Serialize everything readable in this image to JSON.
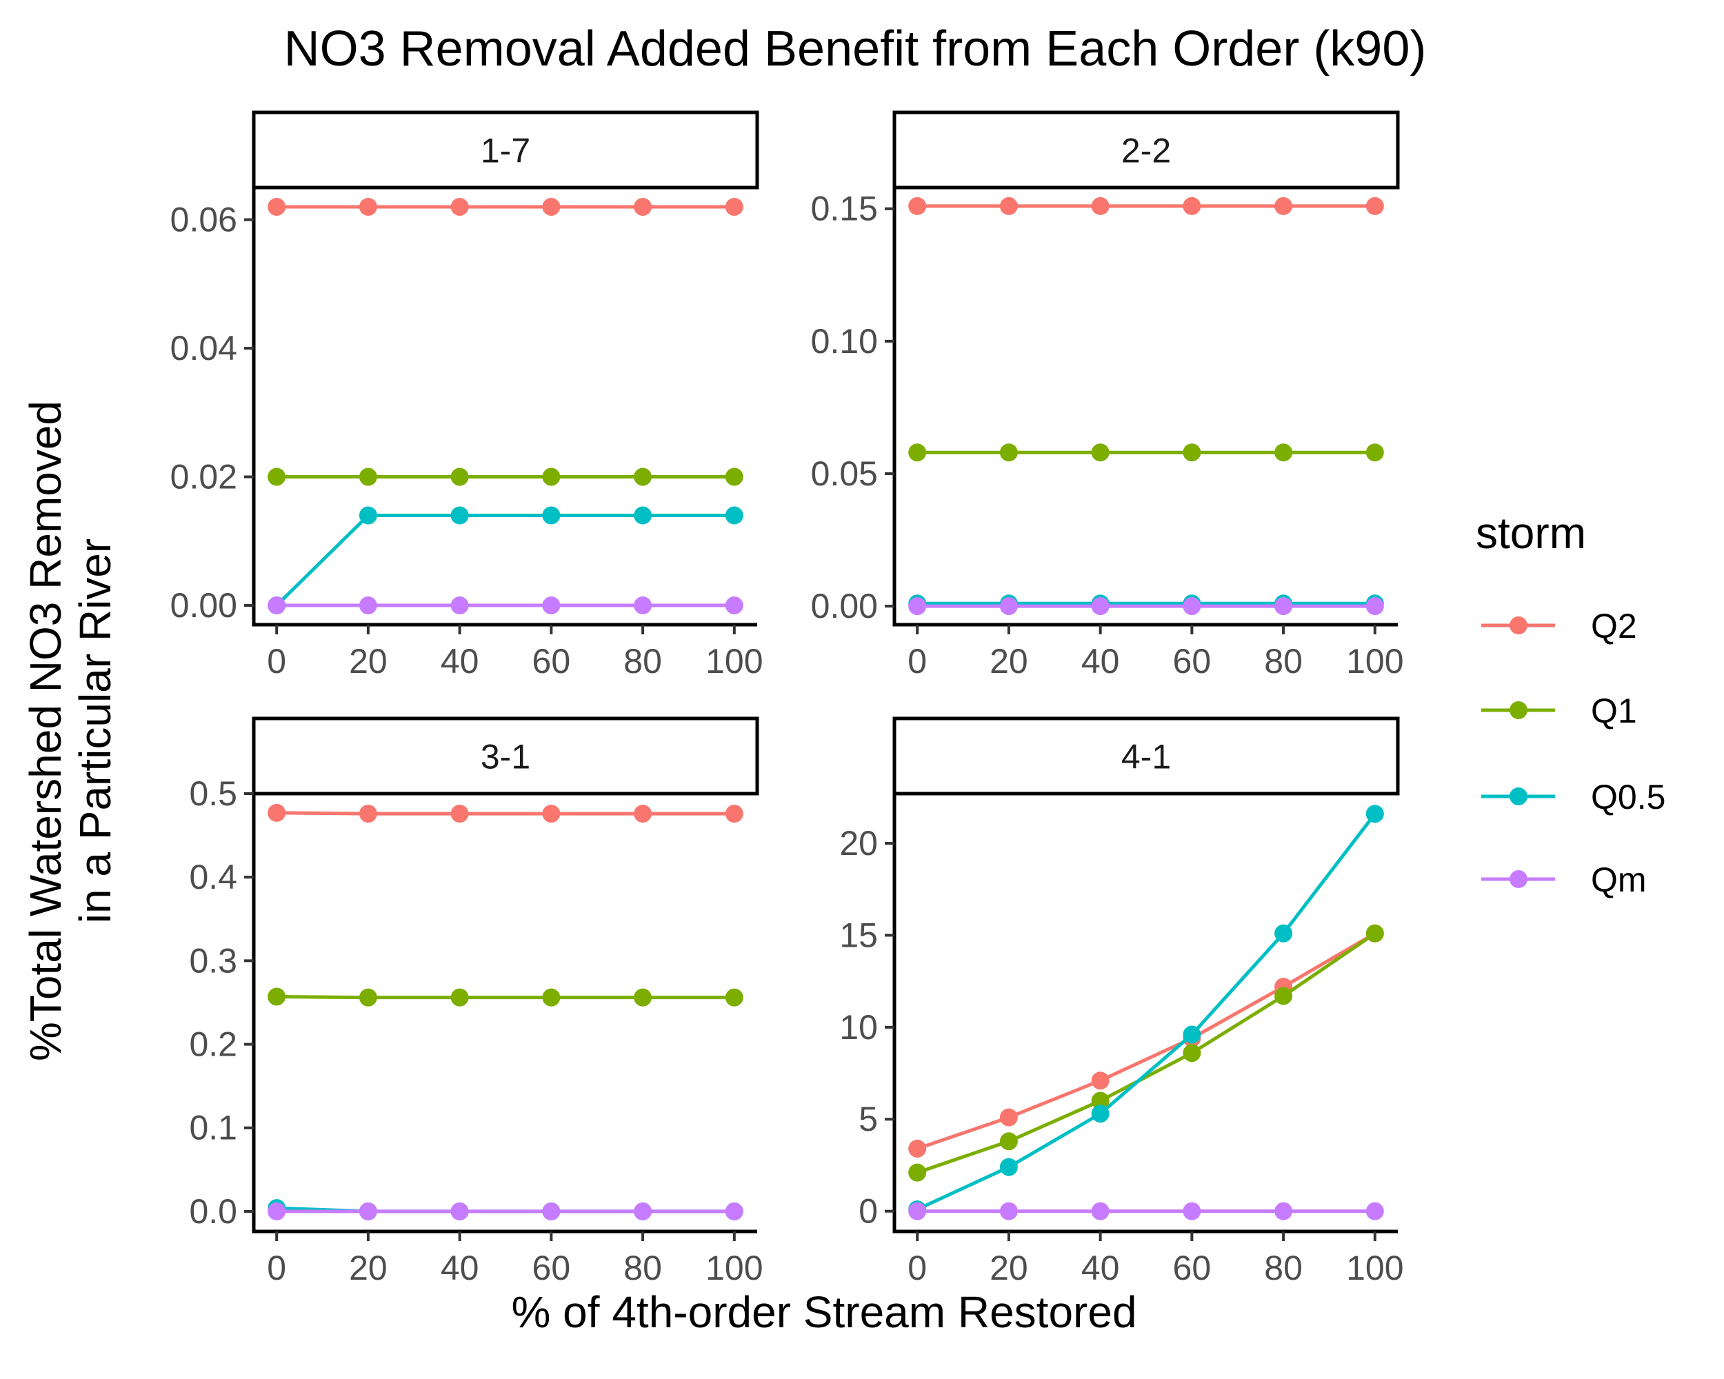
{
  "chart_data": {
    "type": "line",
    "title": "NO3 Removal Added Benefit from Each Order (k90)",
    "xlabel": "% of 4th-order Stream Restored",
    "ylabel_lines": [
      "%Total Watershed NO3 Removed",
      "in a Particular River"
    ],
    "legend": {
      "title": "storm",
      "placement": "right",
      "entries": [
        {
          "name": "Q2",
          "color": "#F8766D"
        },
        {
          "name": "Q1",
          "color": "#7CAE00"
        },
        {
          "name": "Q0.5",
          "color": "#00BFC4"
        },
        {
          "name": "Qm",
          "color": "#C77CFF"
        }
      ]
    },
    "x": [
      0,
      20,
      40,
      60,
      80,
      100
    ],
    "x_ticks": [
      "0",
      "20",
      "40",
      "60",
      "80",
      "100"
    ],
    "grid": false,
    "panels": [
      {
        "label": "1-7",
        "ylim": [
          -0.003,
          0.065
        ],
        "y_ticks": [
          0.0,
          0.02,
          0.04,
          0.06
        ],
        "y_tick_labels": [
          "0.00",
          "0.02",
          "0.04",
          "0.06"
        ],
        "series": [
          {
            "name": "Q2",
            "values": [
              0.062,
              0.062,
              0.062,
              0.062,
              0.062,
              0.062
            ]
          },
          {
            "name": "Q1",
            "values": [
              0.02,
              0.02,
              0.02,
              0.02,
              0.02,
              0.02
            ]
          },
          {
            "name": "Q0.5",
            "values": [
              0.0,
              0.014,
              0.014,
              0.014,
              0.014,
              0.014
            ]
          },
          {
            "name": "Qm",
            "values": [
              0.0,
              0.0,
              0.0,
              0.0,
              0.0,
              0.0
            ]
          }
        ]
      },
      {
        "label": "2-2",
        "ylim": [
          -0.007,
          0.158
        ],
        "y_ticks": [
          0.0,
          0.05,
          0.1,
          0.15
        ],
        "y_tick_labels": [
          "0.00",
          "0.05",
          "0.10",
          "0.15"
        ],
        "series": [
          {
            "name": "Q2",
            "values": [
              0.151,
              0.151,
              0.151,
              0.151,
              0.151,
              0.151
            ]
          },
          {
            "name": "Q1",
            "values": [
              0.058,
              0.058,
              0.058,
              0.058,
              0.058,
              0.058
            ]
          },
          {
            "name": "Q0.5",
            "values": [
              0.001,
              0.001,
              0.001,
              0.001,
              0.001,
              0.001
            ]
          },
          {
            "name": "Qm",
            "values": [
              0.0,
              0.0,
              0.0,
              0.0,
              0.0,
              0.0
            ]
          }
        ]
      },
      {
        "label": "3-1",
        "ylim": [
          -0.024,
          0.5
        ],
        "y_ticks": [
          0.0,
          0.1,
          0.2,
          0.3,
          0.4,
          0.5
        ],
        "y_tick_labels": [
          "0.0",
          "0.1",
          "0.2",
          "0.3",
          "0.4",
          "0.5"
        ],
        "series": [
          {
            "name": "Q2",
            "values": [
              0.477,
              0.476,
              0.476,
              0.476,
              0.476,
              0.476
            ]
          },
          {
            "name": "Q1",
            "values": [
              0.257,
              0.256,
              0.256,
              0.256,
              0.256,
              0.256
            ]
          },
          {
            "name": "Q0.5",
            "values": [
              0.004,
              0.0,
              0.0,
              0.0,
              0.0,
              0.0
            ]
          },
          {
            "name": "Qm",
            "values": [
              0.0,
              0.0,
              0.0,
              0.0,
              0.0,
              0.0
            ]
          }
        ]
      },
      {
        "label": "4-1",
        "ylim": [
          -1.1,
          22.7
        ],
        "y_ticks": [
          0,
          5,
          10,
          15,
          20
        ],
        "y_tick_labels": [
          "0",
          "5",
          "10",
          "15",
          "20"
        ],
        "series": [
          {
            "name": "Q2",
            "values": [
              3.4,
              5.1,
              7.1,
              9.4,
              12.2,
              15.1
            ]
          },
          {
            "name": "Q1",
            "values": [
              2.1,
              3.8,
              6.0,
              8.6,
              11.7,
              15.1
            ]
          },
          {
            "name": "Q0.5",
            "values": [
              0.1,
              2.4,
              5.3,
              9.6,
              15.1,
              21.6
            ]
          },
          {
            "name": "Qm",
            "values": [
              0.0,
              0.0,
              0.0,
              0.0,
              0.0,
              0.0
            ]
          }
        ]
      }
    ]
  }
}
